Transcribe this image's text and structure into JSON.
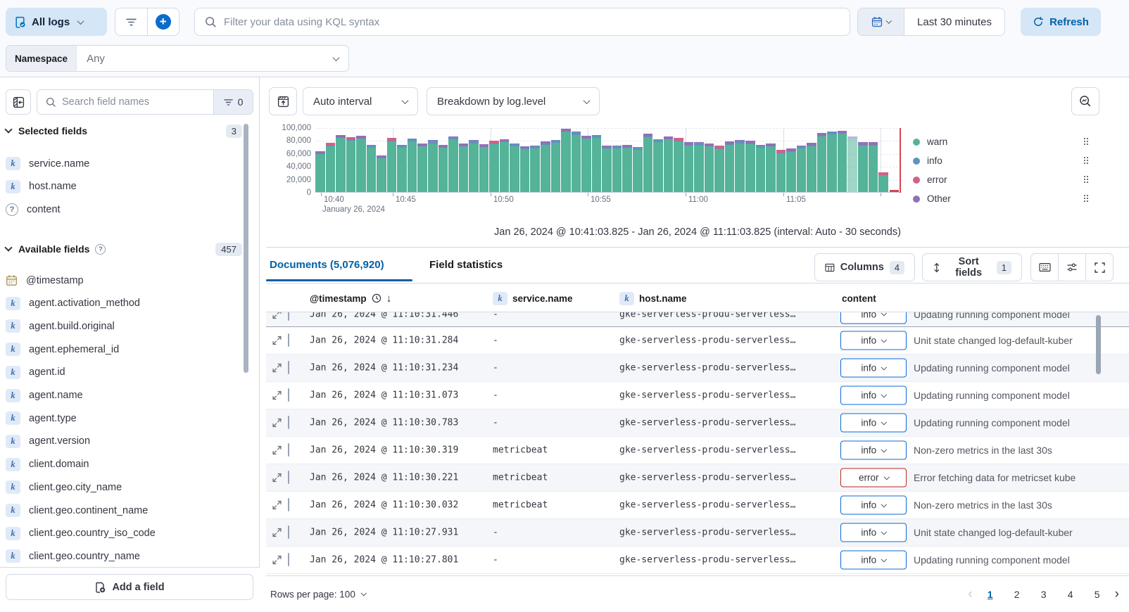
{
  "colors": {
    "accent_blue": "#0071C2",
    "link_blue": "#0061A6",
    "info_badge_border": "#0B6BD7",
    "error_badge_border": "#BD271E",
    "warn": "#54B399",
    "info": "#6092C0",
    "error": "#D36086",
    "other": "#9170B8"
  },
  "header": {
    "dataview_button": "All logs",
    "kql_placeholder": "Filter your data using KQL syntax",
    "time_range": "Last 30 minutes",
    "refresh_label": "Refresh",
    "namespace_label": "Namespace",
    "namespace_value": "Any"
  },
  "sidebar": {
    "search_placeholder": "Search field names",
    "filter_badge": "0",
    "selected_title": "Selected fields",
    "selected_count": "3",
    "selected_fields": [
      {
        "name": "service.name",
        "type": "keyword"
      },
      {
        "name": "host.name",
        "type": "keyword"
      },
      {
        "name": "content",
        "type": "unknown"
      }
    ],
    "available_title": "Available fields",
    "available_count": "457",
    "available_fields": [
      {
        "name": "@timestamp",
        "type": "date"
      },
      {
        "name": "agent.activation_method",
        "type": "keyword"
      },
      {
        "name": "agent.build.original",
        "type": "keyword"
      },
      {
        "name": "agent.ephemeral_id",
        "type": "keyword"
      },
      {
        "name": "agent.id",
        "type": "keyword"
      },
      {
        "name": "agent.name",
        "type": "keyword"
      },
      {
        "name": "agent.type",
        "type": "keyword"
      },
      {
        "name": "agent.version",
        "type": "keyword"
      },
      {
        "name": "client.domain",
        "type": "keyword"
      },
      {
        "name": "client.geo.city_name",
        "type": "keyword"
      },
      {
        "name": "client.geo.continent_name",
        "type": "keyword"
      },
      {
        "name": "client.geo.country_iso_code",
        "type": "keyword"
      },
      {
        "name": "client.geo.country_name",
        "type": "keyword"
      }
    ],
    "add_field_label": "Add a field"
  },
  "chart": {
    "interval_label": "Auto interval",
    "breakdown_label": "Breakdown by log.level",
    "caption": "Jan 26, 2024 @ 10:41:03.825 - Jan 26, 2024 @ 11:11:03.825 (interval: Auto - 30 seconds)",
    "y_ticks": [
      "100,000",
      "80,000",
      "60,000",
      "40,000",
      "20,000",
      "0"
    ],
    "x_ticks": [
      "10:40",
      "10:45",
      "10:50",
      "10:55",
      "11:00",
      "11:05"
    ],
    "x_date_label": "January 26, 2024",
    "legend": [
      {
        "label": "warn",
        "color": "#54B399"
      },
      {
        "label": "info",
        "color": "#6092C0"
      },
      {
        "label": "error",
        "color": "#D36086"
      },
      {
        "label": "Other",
        "color": "#9170B8"
      }
    ]
  },
  "chart_data": {
    "type": "bar",
    "stacked": true,
    "x_axis": "time, Jan 26 2024, 30-second buckets from 10:41:03 to 11:11:03",
    "ylim": [
      0,
      100000
    ],
    "series_order": [
      "warn",
      "info",
      "error",
      "other"
    ],
    "series_colors": {
      "warn": "#54B399",
      "info": "#6092C0",
      "error": "#D36086",
      "other": "#9170B8"
    },
    "buckets": [
      [
        58200,
        800,
        0,
        4000
      ],
      [
        70700,
        800,
        4500,
        0
      ],
      [
        83200,
        800,
        0,
        4000
      ],
      [
        79700,
        800,
        4500,
        0
      ],
      [
        82200,
        800,
        0,
        4000
      ],
      [
        68200,
        4000,
        0,
        800
      ],
      [
        52200,
        800,
        0,
        4000
      ],
      [
        78700,
        800,
        4500,
        0
      ],
      [
        68200,
        4000,
        0,
        800
      ],
      [
        78200,
        4000,
        0,
        800
      ],
      [
        70200,
        800,
        0,
        4000
      ],
      [
        75200,
        4000,
        0,
        800
      ],
      [
        68200,
        800,
        0,
        4000
      ],
      [
        81200,
        4000,
        0,
        800
      ],
      [
        70200,
        800,
        0,
        4000
      ],
      [
        75200,
        4000,
        0,
        800
      ],
      [
        69200,
        800,
        0,
        4000
      ],
      [
        73700,
        800,
        4500,
        0
      ],
      [
        77200,
        800,
        0,
        4000
      ],
      [
        70200,
        4000,
        0,
        800
      ],
      [
        66200,
        800,
        0,
        4000
      ],
      [
        67200,
        4000,
        0,
        800
      ],
      [
        73200,
        800,
        0,
        4000
      ],
      [
        76200,
        4000,
        0,
        800
      ],
      [
        93200,
        800,
        0,
        4000
      ],
      [
        88200,
        4000,
        0,
        800
      ],
      [
        82200,
        800,
        0,
        4000
      ],
      [
        83200,
        4000,
        0,
        800
      ],
      [
        67200,
        800,
        0,
        4000
      ],
      [
        67200,
        4000,
        0,
        800
      ],
      [
        68200,
        800,
        0,
        4000
      ],
      [
        65200,
        4000,
        0,
        800
      ],
      [
        85200,
        800,
        0,
        4000
      ],
      [
        77200,
        4000,
        0,
        800
      ],
      [
        81200,
        800,
        0,
        4000
      ],
      [
        78700,
        800,
        4500,
        0
      ],
      [
        72200,
        800,
        0,
        4000
      ],
      [
        72200,
        4000,
        0,
        800
      ],
      [
        70200,
        800,
        0,
        4000
      ],
      [
        66700,
        800,
        4500,
        0
      ],
      [
        73200,
        800,
        0,
        4000
      ],
      [
        75200,
        4000,
        0,
        800
      ],
      [
        74200,
        800,
        0,
        4000
      ],
      [
        68200,
        4000,
        0,
        800
      ],
      [
        70200,
        800,
        0,
        4000
      ],
      [
        59700,
        800,
        4500,
        0
      ],
      [
        62200,
        800,
        0,
        4000
      ],
      [
        67200,
        4000,
        0,
        800
      ],
      [
        71200,
        800,
        0,
        4000
      ],
      [
        86200,
        800,
        0,
        4000
      ],
      [
        89200,
        4000,
        0,
        800
      ],
      [
        90200,
        800,
        0,
        4000
      ],
      [
        81200,
        4000,
        0,
        800
      ],
      [
        72200,
        800,
        0,
        4000
      ],
      [
        72200,
        800,
        0,
        4000
      ],
      [
        25700,
        800,
        4500,
        0
      ]
    ]
  },
  "tabs": {
    "documents": "Documents (5,076,920)",
    "field_statistics": "Field statistics"
  },
  "toolbar": {
    "columns_label": "Columns",
    "columns_count": "4",
    "sort_label": "Sort fields",
    "sort_count": "1"
  },
  "table": {
    "columns": {
      "timestamp": "@timestamp",
      "service": "service.name",
      "host": "host.name",
      "content": "content"
    },
    "partial_row": {
      "ts": "Jan 26, 2024 @ 11:10:31.446",
      "service": "-",
      "host": "gke-serverless-produ-serverless…",
      "level": "info",
      "message": "Updating running component model"
    },
    "rows": [
      {
        "ts": "Jan 26, 2024 @ 11:10:31.284",
        "service": "-",
        "host": "gke-serverless-produ-serverless…",
        "level": "info",
        "message": "Unit state changed log-default-kuber"
      },
      {
        "ts": "Jan 26, 2024 @ 11:10:31.234",
        "service": "-",
        "host": "gke-serverless-produ-serverless…",
        "level": "info",
        "message": "Updating running component model"
      },
      {
        "ts": "Jan 26, 2024 @ 11:10:31.073",
        "service": "-",
        "host": "gke-serverless-produ-serverless…",
        "level": "info",
        "message": "Updating running component model"
      },
      {
        "ts": "Jan 26, 2024 @ 11:10:30.783",
        "service": "-",
        "host": "gke-serverless-produ-serverless…",
        "level": "info",
        "message": "Updating running component model"
      },
      {
        "ts": "Jan 26, 2024 @ 11:10:30.319",
        "service": "metricbeat",
        "host": "gke-serverless-produ-serverless…",
        "level": "info",
        "message": "Non-zero metrics in the last 30s"
      },
      {
        "ts": "Jan 26, 2024 @ 11:10:30.221",
        "service": "metricbeat",
        "host": "gke-serverless-produ-serverless…",
        "level": "error",
        "message": "Error fetching data for metricset kube"
      },
      {
        "ts": "Jan 26, 2024 @ 11:10:30.032",
        "service": "metricbeat",
        "host": "gke-serverless-produ-serverless…",
        "level": "info",
        "message": "Non-zero metrics in the last 30s"
      },
      {
        "ts": "Jan 26, 2024 @ 11:10:27.931",
        "service": "-",
        "host": "gke-serverless-produ-serverless…",
        "level": "info",
        "message": "Unit state changed log-default-kuber"
      },
      {
        "ts": "Jan 26, 2024 @ 11:10:27.801",
        "service": "-",
        "host": "gke-serverless-produ-serverless…",
        "level": "info",
        "message": "Updating running component model"
      }
    ]
  },
  "footer": {
    "rows_per_page": "Rows per page: 100",
    "pages": [
      "1",
      "2",
      "3",
      "4",
      "5"
    ],
    "active_page": "1"
  }
}
